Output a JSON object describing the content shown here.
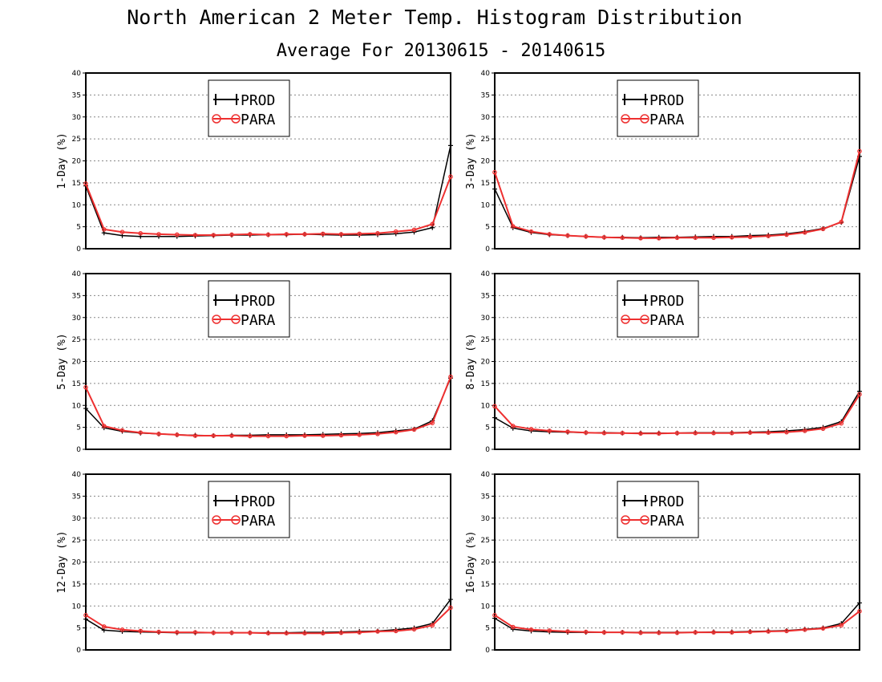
{
  "title": "North American 2 Meter Temp. Histogram Distribution",
  "subtitle": "Average For 20130615 - 20140615",
  "colors": {
    "PROD": "#000000",
    "PARA": "#ee3030"
  },
  "chart_data": [
    {
      "type": "line",
      "ylabel": "1-Day (%)",
      "ylim": [
        0,
        40
      ],
      "yticks": [
        0,
        5,
        10,
        15,
        20,
        25,
        30,
        35,
        40
      ],
      "grid": true,
      "legend_position": "top-left",
      "x": [
        1,
        2,
        3,
        4,
        5,
        6,
        7,
        8,
        9,
        10,
        11,
        12,
        13,
        14,
        15,
        16,
        17,
        18,
        19,
        20,
        21
      ],
      "series": [
        {
          "name": "PROD",
          "values": [
            14.3,
            3.6,
            3.0,
            2.8,
            2.8,
            2.8,
            2.9,
            3.0,
            3.1,
            3.1,
            3.2,
            3.2,
            3.3,
            3.2,
            3.1,
            3.1,
            3.2,
            3.4,
            3.8,
            4.8,
            23.5
          ]
        },
        {
          "name": "PARA",
          "values": [
            14.8,
            4.4,
            3.8,
            3.5,
            3.3,
            3.2,
            3.1,
            3.1,
            3.2,
            3.3,
            3.2,
            3.3,
            3.3,
            3.4,
            3.3,
            3.4,
            3.5,
            3.9,
            4.3,
            5.6,
            16.4
          ]
        }
      ]
    },
    {
      "type": "line",
      "ylabel": "3-Day (%)",
      "ylim": [
        0,
        40
      ],
      "yticks": [
        0,
        5,
        10,
        15,
        20,
        25,
        30,
        35,
        40
      ],
      "grid": true,
      "legend_position": "top-left",
      "x": [
        1,
        2,
        3,
        4,
        5,
        6,
        7,
        8,
        9,
        10,
        11,
        12,
        13,
        14,
        15,
        16,
        17,
        18,
        19,
        20,
        21
      ],
      "series": [
        {
          "name": "PROD",
          "values": [
            13.6,
            4.8,
            3.7,
            3.2,
            3.0,
            2.8,
            2.6,
            2.6,
            2.5,
            2.6,
            2.6,
            2.7,
            2.8,
            2.8,
            3.0,
            3.1,
            3.4,
            3.9,
            4.6,
            6.0,
            21.0
          ]
        },
        {
          "name": "PARA",
          "values": [
            17.4,
            5.1,
            3.9,
            3.3,
            3.0,
            2.8,
            2.6,
            2.5,
            2.4,
            2.4,
            2.5,
            2.5,
            2.5,
            2.6,
            2.7,
            2.9,
            3.2,
            3.7,
            4.5,
            6.1,
            22.2
          ]
        }
      ]
    },
    {
      "type": "line",
      "ylabel": "5-Day (%)",
      "ylim": [
        0,
        40
      ],
      "yticks": [
        0,
        5,
        10,
        15,
        20,
        25,
        30,
        35,
        40
      ],
      "grid": true,
      "legend_position": "top-left",
      "x": [
        1,
        2,
        3,
        4,
        5,
        6,
        7,
        8,
        9,
        10,
        11,
        12,
        13,
        14,
        15,
        16,
        17,
        18,
        19,
        20,
        21
      ],
      "series": [
        {
          "name": "PROD",
          "values": [
            9.3,
            4.9,
            4.1,
            3.7,
            3.5,
            3.3,
            3.2,
            3.1,
            3.2,
            3.2,
            3.3,
            3.3,
            3.3,
            3.4,
            3.5,
            3.6,
            3.8,
            4.2,
            4.6,
            6.5,
            16.2
          ]
        },
        {
          "name": "PARA",
          "values": [
            14.1,
            5.3,
            4.3,
            3.8,
            3.5,
            3.3,
            3.1,
            3.1,
            3.1,
            3.0,
            3.0,
            3.0,
            3.1,
            3.1,
            3.2,
            3.3,
            3.5,
            3.9,
            4.5,
            6.0,
            16.5
          ]
        }
      ]
    },
    {
      "type": "line",
      "ylabel": "8-Day (%)",
      "ylim": [
        0,
        40
      ],
      "yticks": [
        0,
        5,
        10,
        15,
        20,
        25,
        30,
        35,
        40
      ],
      "grid": true,
      "legend_position": "top-left",
      "x": [
        1,
        2,
        3,
        4,
        5,
        6,
        7,
        8,
        9,
        10,
        11,
        12,
        13,
        14,
        15,
        16,
        17,
        18,
        19,
        20,
        21
      ],
      "series": [
        {
          "name": "PROD",
          "values": [
            7.2,
            4.8,
            4.2,
            4.0,
            3.9,
            3.8,
            3.8,
            3.7,
            3.7,
            3.7,
            3.7,
            3.8,
            3.8,
            3.8,
            3.9,
            4.0,
            4.2,
            4.5,
            5.0,
            6.3,
            13.2
          ]
        },
        {
          "name": "PARA",
          "values": [
            9.8,
            5.3,
            4.6,
            4.2,
            4.0,
            3.8,
            3.7,
            3.7,
            3.6,
            3.6,
            3.7,
            3.7,
            3.7,
            3.7,
            3.8,
            3.8,
            3.9,
            4.2,
            4.7,
            5.9,
            12.5
          ]
        }
      ]
    },
    {
      "type": "line",
      "ylabel": "12-Day (%)",
      "ylim": [
        0,
        40
      ],
      "yticks": [
        0,
        5,
        10,
        15,
        20,
        25,
        30,
        35,
        40
      ],
      "grid": true,
      "legend_position": "top-left",
      "x": [
        1,
        2,
        3,
        4,
        5,
        6,
        7,
        8,
        9,
        10,
        11,
        12,
        13,
        14,
        15,
        16,
        17,
        18,
        19,
        20,
        21
      ],
      "series": [
        {
          "name": "PROD",
          "values": [
            7.0,
            4.5,
            4.2,
            4.1,
            4.0,
            3.9,
            3.9,
            3.9,
            3.9,
            3.9,
            3.9,
            3.9,
            4.0,
            4.0,
            4.1,
            4.2,
            4.3,
            4.6,
            5.0,
            6.0,
            11.5
          ]
        },
        {
          "name": "PARA",
          "values": [
            7.9,
            5.3,
            4.6,
            4.3,
            4.1,
            4.0,
            4.0,
            3.9,
            3.9,
            3.9,
            3.8,
            3.8,
            3.8,
            3.8,
            3.9,
            4.0,
            4.2,
            4.3,
            4.7,
            5.6,
            9.6
          ]
        }
      ]
    },
    {
      "type": "line",
      "ylabel": "16-Day (%)",
      "ylim": [
        0,
        40
      ],
      "yticks": [
        0,
        5,
        10,
        15,
        20,
        25,
        30,
        35,
        40
      ],
      "grid": true,
      "legend_position": "top-left",
      "x": [
        1,
        2,
        3,
        4,
        5,
        6,
        7,
        8,
        9,
        10,
        11,
        12,
        13,
        14,
        15,
        16,
        17,
        18,
        19,
        20,
        21
      ],
      "series": [
        {
          "name": "PROD",
          "values": [
            7.2,
            4.7,
            4.3,
            4.1,
            4.0,
            4.0,
            4.0,
            4.0,
            4.0,
            4.0,
            4.0,
            4.0,
            4.1,
            4.1,
            4.2,
            4.3,
            4.4,
            4.7,
            5.0,
            6.0,
            10.7
          ]
        },
        {
          "name": "PARA",
          "values": [
            7.9,
            5.2,
            4.6,
            4.4,
            4.2,
            4.1,
            4.0,
            4.0,
            3.9,
            3.9,
            3.9,
            4.0,
            4.0,
            4.0,
            4.1,
            4.2,
            4.3,
            4.6,
            4.9,
            5.6,
            8.8
          ]
        }
      ]
    }
  ]
}
